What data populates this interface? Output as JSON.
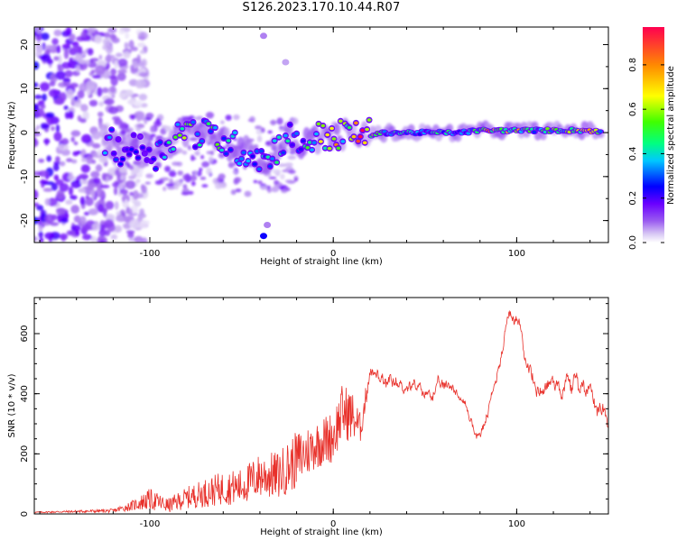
{
  "figure": {
    "title": "S126.2023.170.10.44.R07"
  },
  "chart_data": [
    {
      "type": "heatmap",
      "xlabel": "Height of straight line (km)",
      "ylabel": "Frequency (Hz)",
      "xlim": [
        -163,
        150
      ],
      "ylim": [
        -25,
        24
      ],
      "xticks": [
        -100,
        0,
        100
      ],
      "yticks": [
        -20,
        -10,
        0,
        10,
        20
      ],
      "colorbar": {
        "label": "Normalized spectral amplitude",
        "range": [
          0,
          0.97
        ],
        "ticks": [
          0.0,
          0.2,
          0.4,
          0.6,
          0.8
        ],
        "tick_labels": [
          "0.0",
          "0.2",
          "0.4",
          "0.6",
          "0.8"
        ],
        "colormap": [
          "#ffffff",
          "#d8c8f4",
          "#9a5cf0",
          "#6a00ff",
          "#0000ff",
          "#00c8ff",
          "#00ff80",
          "#40ff00",
          "#ffff00",
          "#ff8c00",
          "#ff0050"
        ]
      },
      "ridge": [
        {
          "x": -125,
          "y": -2.0,
          "amp": 0.35
        },
        {
          "x": -115,
          "y": -4.0,
          "amp": 0.3
        },
        {
          "x": -105,
          "y": -3.5,
          "amp": 0.25
        },
        {
          "x": -95,
          "y": -5.0,
          "amp": 0.35
        },
        {
          "x": -90,
          "y": -2.0,
          "amp": 0.45
        },
        {
          "x": -85,
          "y": 0.0,
          "amp": 0.5
        },
        {
          "x": -80,
          "y": 0.5,
          "amp": 0.7
        },
        {
          "x": -75,
          "y": 0.0,
          "amp": 0.4
        },
        {
          "x": -70,
          "y": -0.5,
          "amp": 0.45
        },
        {
          "x": -65,
          "y": -0.5,
          "amp": 0.55
        },
        {
          "x": -60,
          "y": -2.0,
          "amp": 0.5
        },
        {
          "x": -55,
          "y": -3.0,
          "amp": 0.45
        },
        {
          "x": -50,
          "y": -4.0,
          "amp": 0.4
        },
        {
          "x": -45,
          "y": -4.5,
          "amp": 0.35
        },
        {
          "x": -40,
          "y": -5.5,
          "amp": 0.4
        },
        {
          "x": -35,
          "y": -6.0,
          "amp": 0.4
        },
        {
          "x": -30,
          "y": -3.0,
          "amp": 0.45
        },
        {
          "x": -25,
          "y": 0.0,
          "amp": 0.4
        },
        {
          "x": -20,
          "y": -3.0,
          "amp": 0.3
        },
        {
          "x": -15,
          "y": -2.0,
          "amp": 0.45
        },
        {
          "x": -10,
          "y": -1.5,
          "amp": 0.55
        },
        {
          "x": -5,
          "y": -0.5,
          "amp": 0.7
        },
        {
          "x": 0,
          "y": -1.0,
          "amp": 0.85
        },
        {
          "x": 5,
          "y": -0.5,
          "amp": 0.65
        },
        {
          "x": 10,
          "y": -0.5,
          "amp": 0.8
        },
        {
          "x": 15,
          "y": -0.5,
          "amp": 0.95
        },
        {
          "x": 20,
          "y": -0.5,
          "amp": 0.65
        },
        {
          "x": 30,
          "y": 0.0,
          "amp": 0.4
        },
        {
          "x": 40,
          "y": 0.0,
          "amp": 0.45
        },
        {
          "x": 50,
          "y": 0.0,
          "amp": 0.4
        },
        {
          "x": 60,
          "y": 0.0,
          "amp": 0.45
        },
        {
          "x": 70,
          "y": 0.0,
          "amp": 0.4
        },
        {
          "x": 80,
          "y": 0.5,
          "amp": 0.5
        },
        {
          "x": 85,
          "y": 0.5,
          "amp": 0.9
        },
        {
          "x": 90,
          "y": 0.5,
          "amp": 0.6
        },
        {
          "x": 100,
          "y": 0.5,
          "amp": 0.75
        },
        {
          "x": 110,
          "y": 0.5,
          "amp": 0.5
        },
        {
          "x": 120,
          "y": 0.5,
          "amp": 0.55
        },
        {
          "x": 130,
          "y": 0.5,
          "amp": 0.6
        },
        {
          "x": 140,
          "y": 0.5,
          "amp": 0.75
        },
        {
          "x": 146,
          "y": 0.0,
          "amp": 0.55
        }
      ],
      "noise": {
        "x_range": [
          -163,
          -120
        ],
        "y_range": [
          -25,
          24
        ]
      }
    },
    {
      "type": "line",
      "xlabel": "Height of straight line (km)",
      "ylabel": "SNR (10 * v/v)",
      "xlim": [
        -163,
        150
      ],
      "ylim": [
        0,
        720
      ],
      "xticks": [
        -100,
        0,
        100
      ],
      "yticks": [
        0,
        200,
        400,
        600
      ],
      "color": "#e8302a",
      "anchors": [
        {
          "x": -163,
          "y": 5,
          "noise": 3
        },
        {
          "x": -140,
          "y": 8,
          "noise": 5
        },
        {
          "x": -120,
          "y": 10,
          "noise": 8
        },
        {
          "x": -110,
          "y": 25,
          "noise": 20
        },
        {
          "x": -100,
          "y": 45,
          "noise": 45
        },
        {
          "x": -90,
          "y": 25,
          "noise": 30
        },
        {
          "x": -80,
          "y": 50,
          "noise": 45
        },
        {
          "x": -70,
          "y": 65,
          "noise": 60
        },
        {
          "x": -60,
          "y": 80,
          "noise": 70
        },
        {
          "x": -50,
          "y": 85,
          "noise": 75
        },
        {
          "x": -40,
          "y": 120,
          "noise": 95
        },
        {
          "x": -30,
          "y": 120,
          "noise": 100
        },
        {
          "x": -20,
          "y": 170,
          "noise": 120
        },
        {
          "x": -10,
          "y": 220,
          "noise": 100
        },
        {
          "x": 0,
          "y": 250,
          "noise": 110
        },
        {
          "x": 5,
          "y": 330,
          "noise": 120
        },
        {
          "x": 10,
          "y": 320,
          "noise": 110
        },
        {
          "x": 15,
          "y": 280,
          "noise": 60
        },
        {
          "x": 20,
          "y": 470,
          "noise": 35
        },
        {
          "x": 30,
          "y": 420,
          "noise": 35
        },
        {
          "x": 40,
          "y": 430,
          "noise": 30
        },
        {
          "x": 50,
          "y": 400,
          "noise": 30
        },
        {
          "x": 60,
          "y": 420,
          "noise": 30
        },
        {
          "x": 65,
          "y": 430,
          "noise": 25
        },
        {
          "x": 70,
          "y": 380,
          "noise": 25
        },
        {
          "x": 75,
          "y": 320,
          "noise": 25
        },
        {
          "x": 78,
          "y": 250,
          "noise": 20
        },
        {
          "x": 82,
          "y": 290,
          "noise": 25
        },
        {
          "x": 88,
          "y": 420,
          "noise": 30
        },
        {
          "x": 92,
          "y": 560,
          "noise": 35
        },
        {
          "x": 96,
          "y": 680,
          "noise": 30
        },
        {
          "x": 100,
          "y": 640,
          "noise": 30
        },
        {
          "x": 104,
          "y": 560,
          "noise": 35
        },
        {
          "x": 110,
          "y": 420,
          "noise": 40
        },
        {
          "x": 120,
          "y": 440,
          "noise": 50
        },
        {
          "x": 130,
          "y": 430,
          "noise": 50
        },
        {
          "x": 140,
          "y": 420,
          "noise": 45
        },
        {
          "x": 145,
          "y": 360,
          "noise": 40
        },
        {
          "x": 150,
          "y": 330,
          "noise": 40
        }
      ]
    }
  ]
}
